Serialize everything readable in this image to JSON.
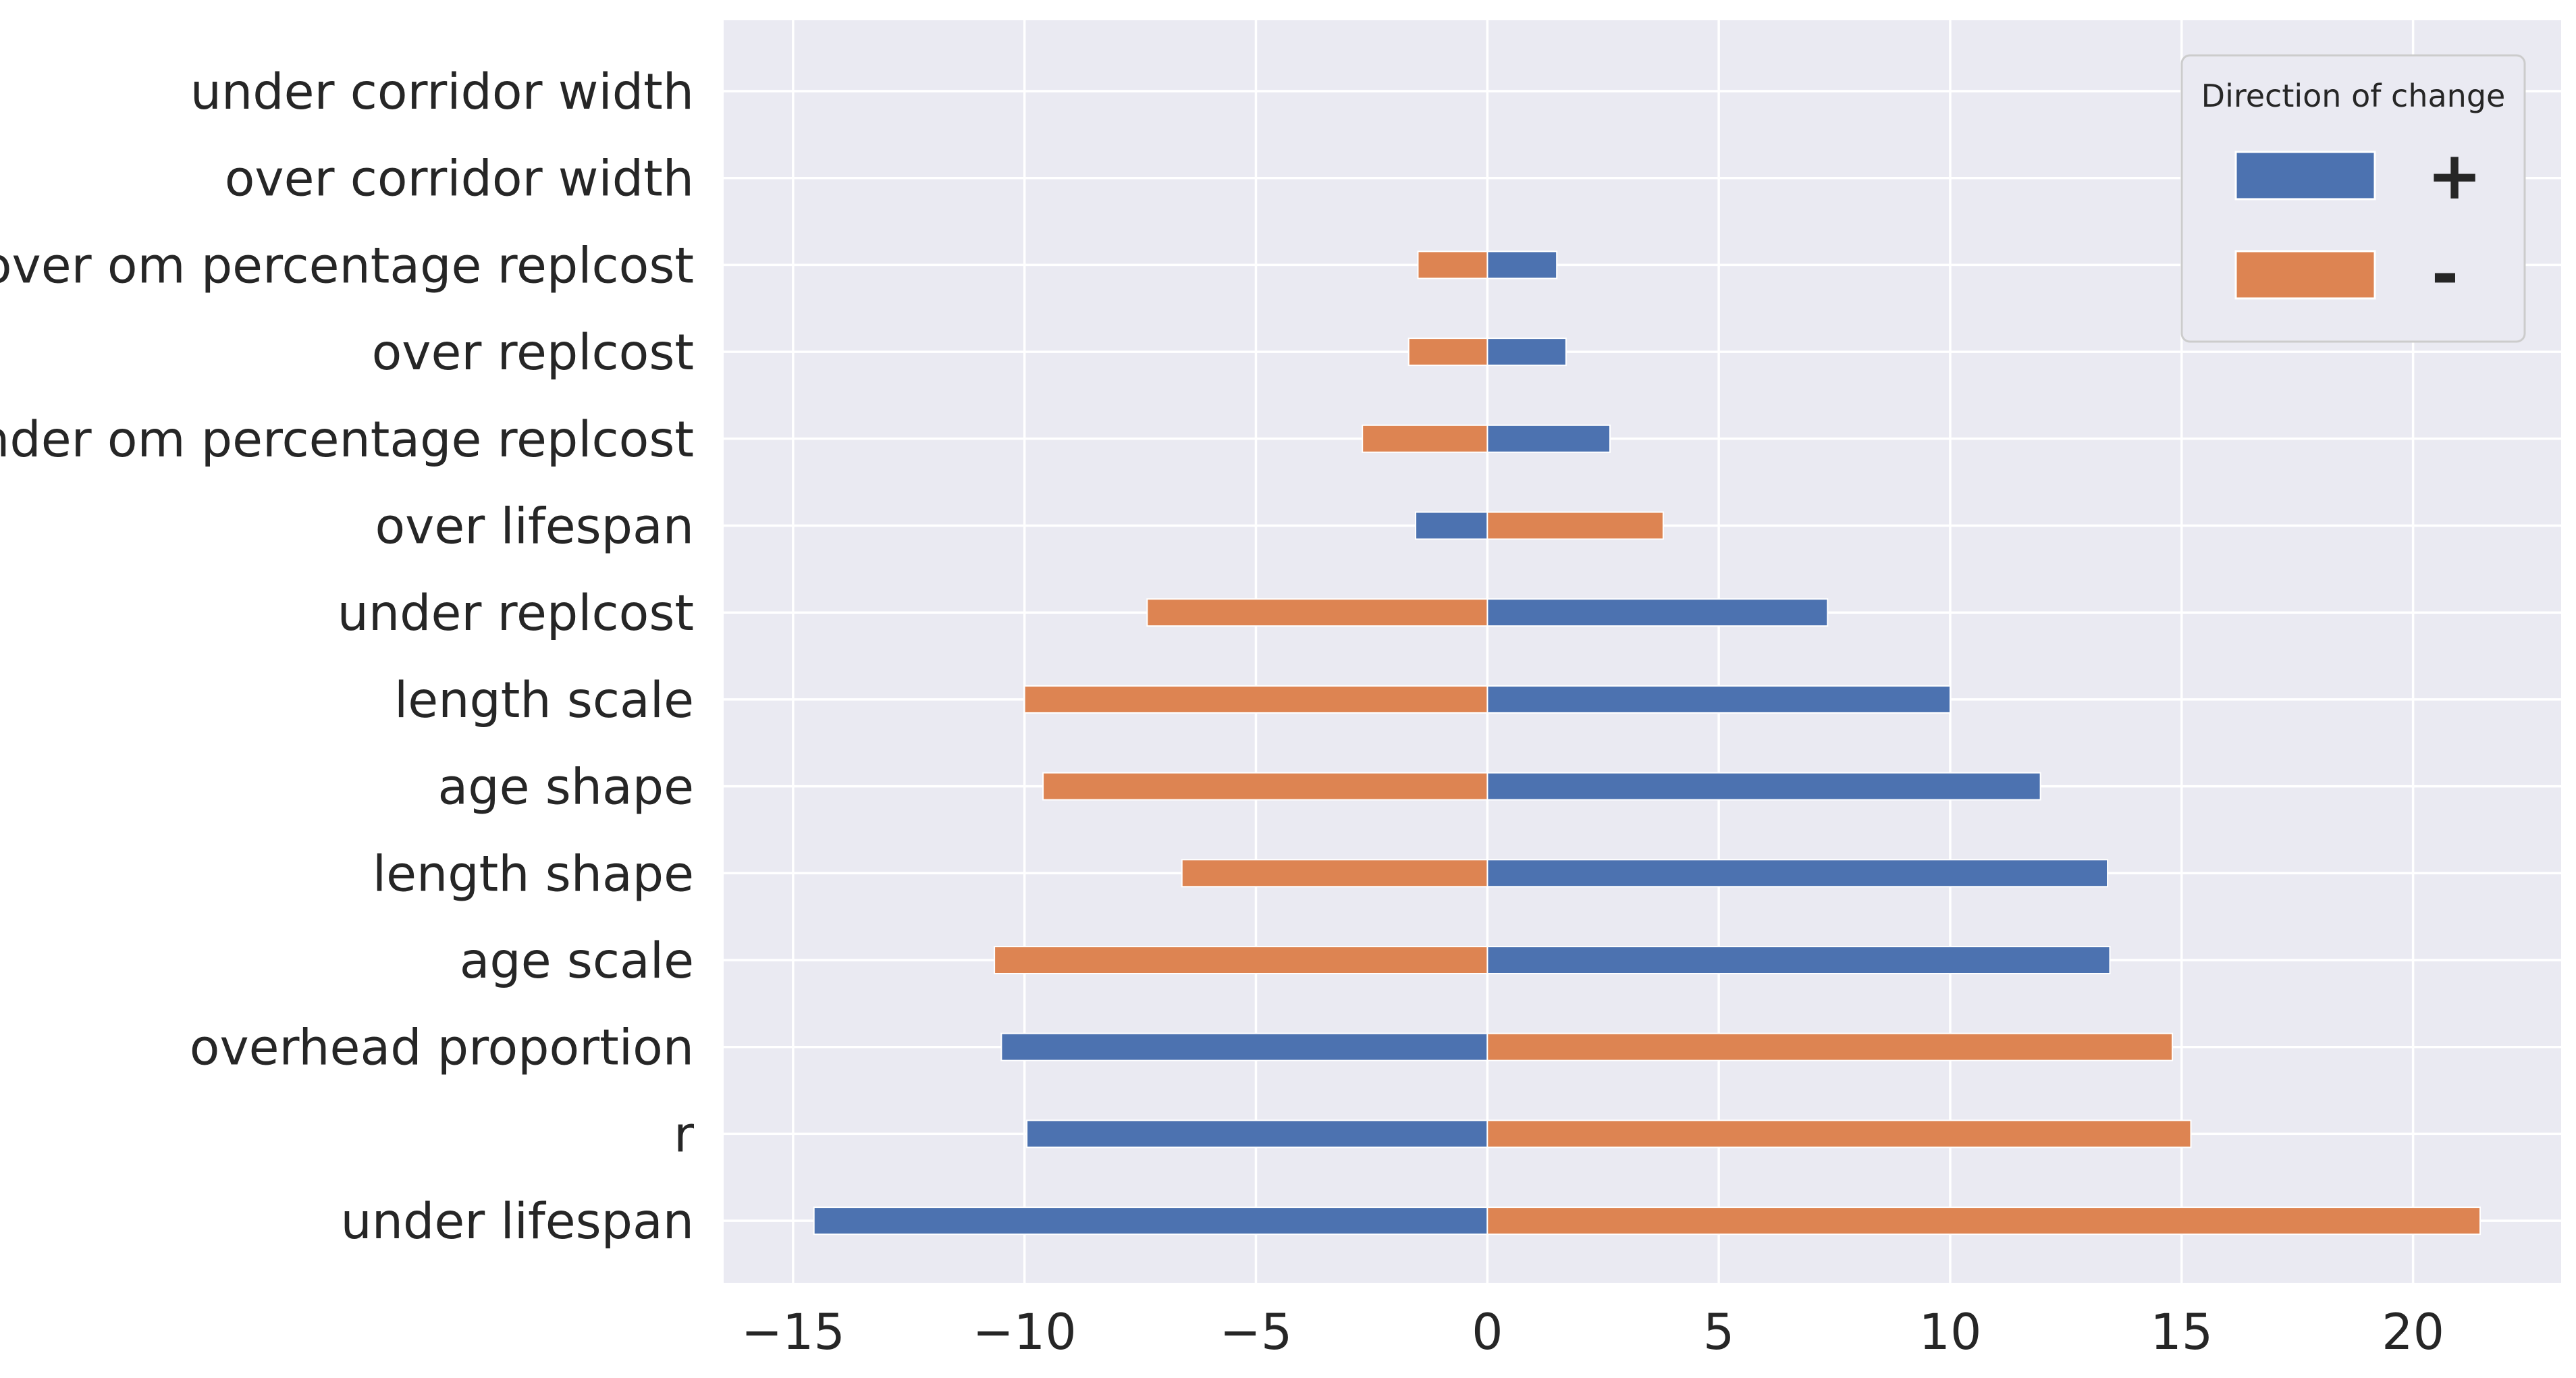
{
  "chart_data": {
    "type": "bar",
    "orientation": "horizontal",
    "categories": [
      "under corridor width",
      "over corridor width",
      "over om percentage replcost",
      "over replcost",
      "under om percentage replcost",
      "over lifespan",
      "under replcost",
      "length scale",
      "age shape",
      "length shape",
      "age scale",
      "overhead proportion",
      "r",
      "under lifespan"
    ],
    "series": [
      {
        "name": "+",
        "color": "#4c72b0",
        "values": [
          0,
          0,
          1.5,
          1.7,
          2.65,
          -1.55,
          7.35,
          10.0,
          11.95,
          13.4,
          13.45,
          -10.5,
          -9.95,
          -14.55
        ]
      },
      {
        "name": "-",
        "color": "#dd8452",
        "values": [
          0,
          0,
          -1.5,
          -1.7,
          -2.7,
          3.8,
          -7.35,
          -10.0,
          -9.6,
          -6.6,
          -10.65,
          14.8,
          15.2,
          21.45
        ]
      }
    ],
    "xlim": [
      -16.5,
      23.2
    ],
    "xticks": [
      -15,
      -10,
      -5,
      0,
      5,
      10,
      15,
      20
    ],
    "xtick_labels": [
      "−15",
      "−10",
      "−5",
      "0",
      "5",
      "10",
      "15",
      "20"
    ],
    "title": "",
    "xlabel": "",
    "ylabel": "",
    "grid": true,
    "legend": {
      "title": "Direction of change",
      "placement": "top-right",
      "entries": [
        "+",
        "-"
      ]
    },
    "colors": {
      "background": "#eaeaf2",
      "grid": "#ffffff",
      "text": "#262626"
    }
  }
}
